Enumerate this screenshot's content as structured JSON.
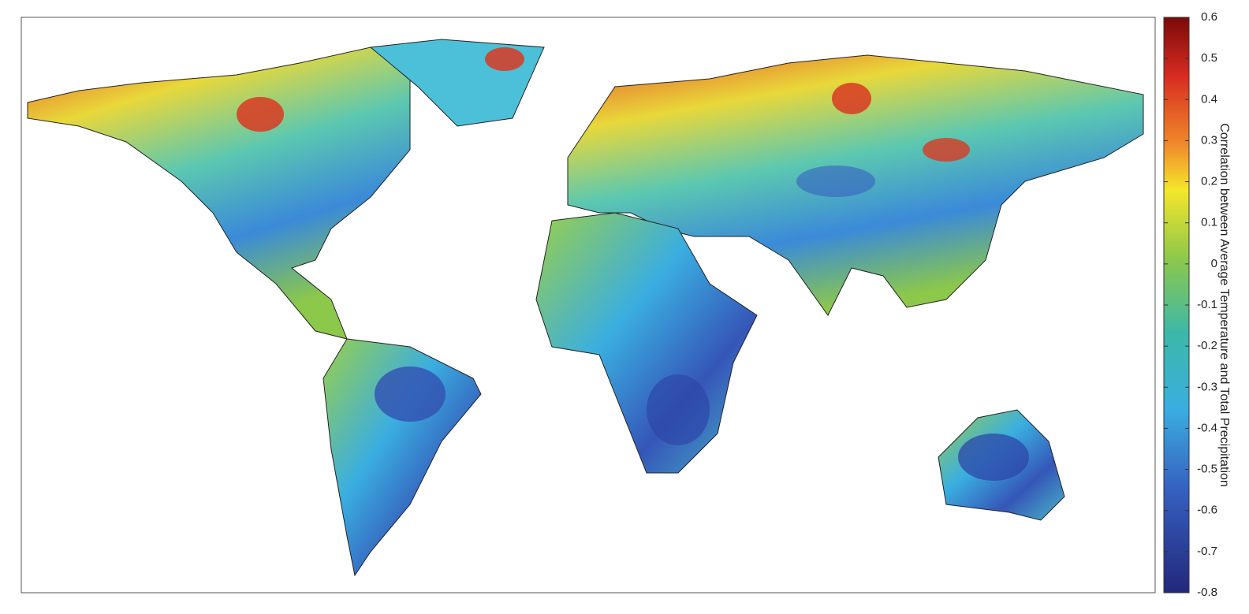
{
  "colorbar": {
    "label": "Correlation between Average Temperature and Total Precipitation",
    "range": [
      -0.8,
      0.6
    ],
    "ticks": [
      0.6,
      0.5,
      0.4,
      0.3,
      0.2,
      0.1,
      0,
      -0.1,
      -0.2,
      -0.3,
      -0.4,
      -0.5,
      -0.6,
      -0.7,
      -0.8
    ]
  }
}
